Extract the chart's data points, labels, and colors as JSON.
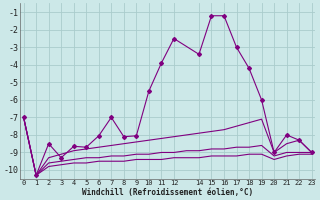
{
  "bg_color": "#cce8e8",
  "grid_color": "#aacccc",
  "line_color": "#800080",
  "xlabel": "Windchill (Refroidissement éolien,°C)",
  "xlim": [
    -0.3,
    23.3
  ],
  "ylim": [
    -10.5,
    -0.5
  ],
  "yticks": [
    -10,
    -9,
    -8,
    -7,
    -6,
    -5,
    -4,
    -3,
    -2,
    -1
  ],
  "xticks": [
    0,
    1,
    2,
    3,
    4,
    5,
    6,
    7,
    8,
    9,
    10,
    11,
    12,
    14,
    15,
    16,
    17,
    18,
    19,
    20,
    21,
    22,
    23
  ],
  "series1_x": [
    0,
    1,
    2,
    3,
    4,
    5,
    6,
    7,
    8,
    9,
    10,
    11,
    12,
    14,
    15,
    16,
    17,
    18,
    19,
    20,
    21,
    22,
    23
  ],
  "series1_y": [
    -7.0,
    -10.3,
    -8.5,
    -9.3,
    -8.65,
    -8.7,
    -8.05,
    -7.0,
    -8.1,
    -8.05,
    -5.5,
    -3.9,
    -2.5,
    -3.4,
    -1.2,
    -1.2,
    -3.0,
    -4.2,
    -6.0,
    -9.0,
    -8.0,
    -8.3,
    -9.0
  ],
  "series2_x": [
    0,
    1,
    2,
    3,
    4,
    5,
    6,
    7,
    8,
    9,
    10,
    11,
    12,
    13,
    14,
    15,
    16,
    17,
    18,
    19,
    20,
    21,
    22,
    23
  ],
  "series2_y": [
    -7.0,
    -10.3,
    -9.3,
    -9.1,
    -8.9,
    -8.8,
    -8.7,
    -8.6,
    -8.5,
    -8.4,
    -8.3,
    -8.2,
    -8.1,
    -8.0,
    -7.9,
    -7.8,
    -7.7,
    -7.5,
    -7.3,
    -7.1,
    -9.0,
    -8.5,
    -8.3,
    -9.0
  ],
  "series3_x": [
    0,
    1,
    2,
    3,
    4,
    5,
    6,
    7,
    8,
    9,
    10,
    11,
    12,
    13,
    14,
    15,
    16,
    17,
    18,
    19,
    20,
    21,
    22,
    23
  ],
  "series3_y": [
    -7.0,
    -10.3,
    -9.6,
    -9.5,
    -9.4,
    -9.3,
    -9.3,
    -9.2,
    -9.2,
    -9.1,
    -9.1,
    -9.0,
    -9.0,
    -8.9,
    -8.9,
    -8.8,
    -8.8,
    -8.7,
    -8.7,
    -8.6,
    -9.2,
    -9.0,
    -9.0,
    -9.0
  ],
  "series4_x": [
    0,
    1,
    2,
    3,
    4,
    5,
    6,
    7,
    8,
    9,
    10,
    11,
    12,
    13,
    14,
    15,
    16,
    17,
    18,
    19,
    20,
    21,
    22,
    23
  ],
  "series4_y": [
    -7.0,
    -10.3,
    -9.8,
    -9.7,
    -9.6,
    -9.6,
    -9.5,
    -9.5,
    -9.5,
    -9.4,
    -9.4,
    -9.4,
    -9.3,
    -9.3,
    -9.3,
    -9.2,
    -9.2,
    -9.2,
    -9.1,
    -9.1,
    -9.4,
    -9.2,
    -9.1,
    -9.1
  ]
}
